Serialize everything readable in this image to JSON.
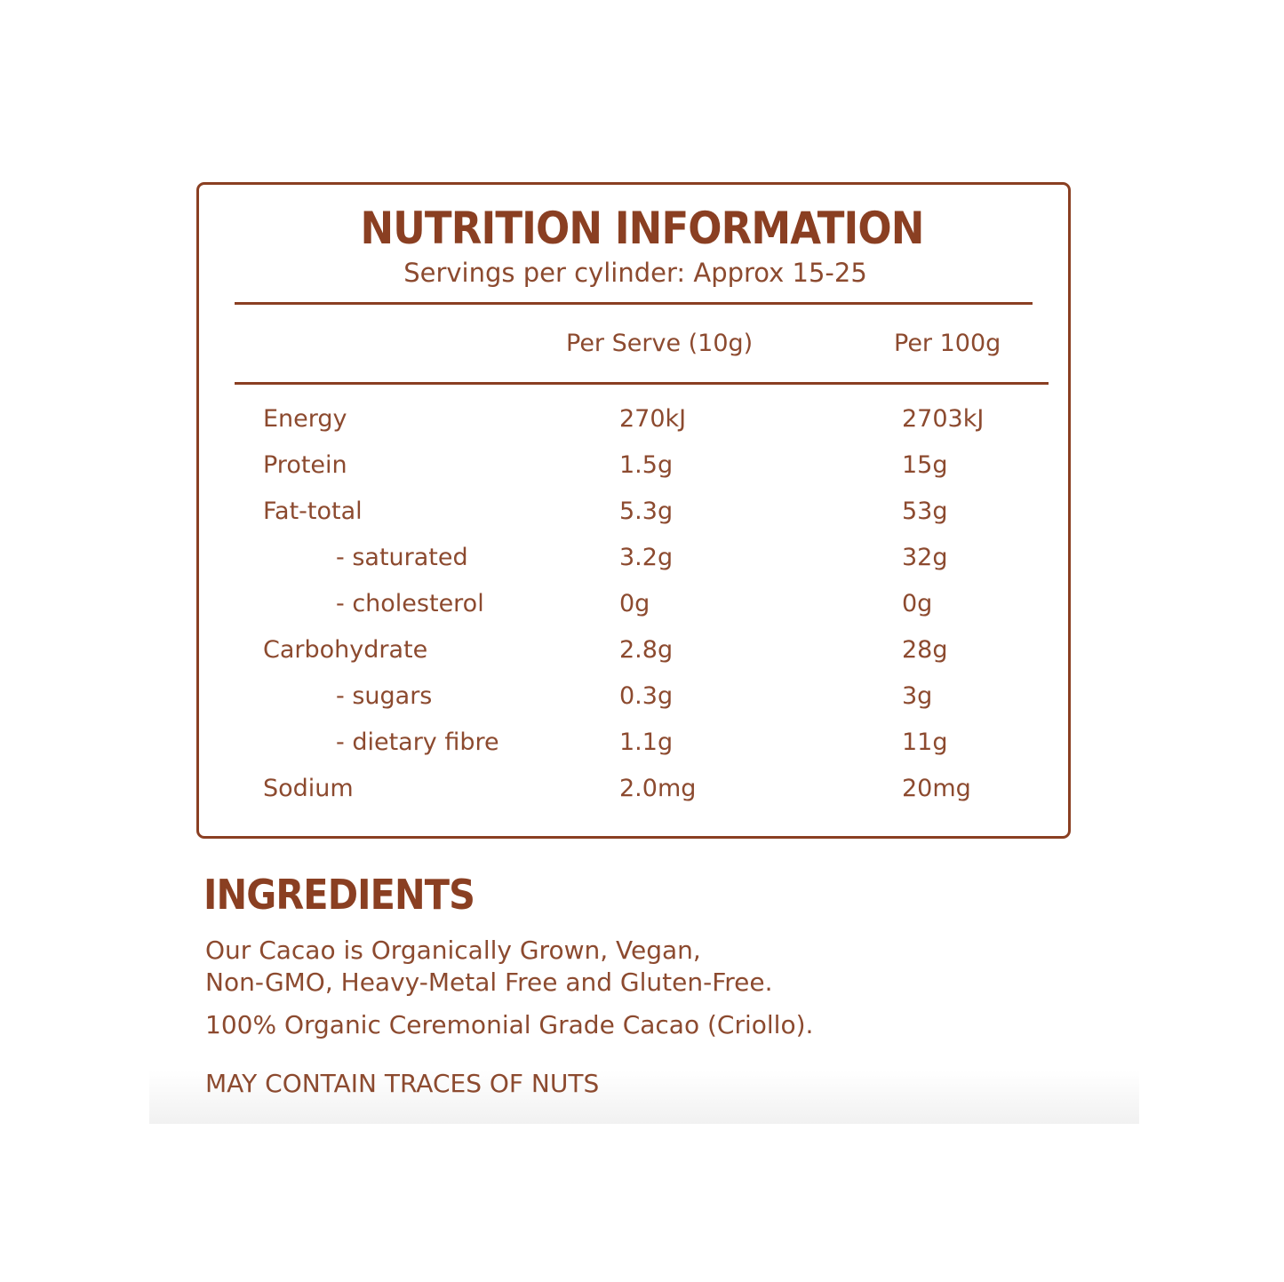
{
  "colors": {
    "brand": "#8a3f22",
    "text": "#8c4a2f"
  },
  "nutrition": {
    "title": "NUTRITION INFORMATION",
    "servings": "Servings per cylinder:  Approx 15-25",
    "columns": [
      "Per Serve (10g)",
      "Per 100g"
    ],
    "rows": [
      {
        "label": "Energy",
        "serve": "270kJ",
        "per100": "2703kJ",
        "indent": false
      },
      {
        "label": "Protein",
        "serve": "1.5g",
        "per100": "15g",
        "indent": false
      },
      {
        "label": "Fat-total",
        "serve": "5.3g",
        "per100": "53g",
        "indent": false
      },
      {
        "label": "- saturated",
        "serve": "3.2g",
        "per100": "32g",
        "indent": true
      },
      {
        "label": "- cholesterol",
        "serve": "0g",
        "per100": "0g",
        "indent": true
      },
      {
        "label": "Carbohydrate",
        "serve": "2.8g",
        "per100": "28g",
        "indent": false
      },
      {
        "label": "- sugars",
        "serve": "0.3g",
        "per100": "3g",
        "indent": true
      },
      {
        "label": "- dietary fibre",
        "serve": "1.1g",
        "per100": "11g",
        "indent": true
      },
      {
        "label": "Sodium",
        "serve": "2.0mg",
        "per100": "20mg",
        "indent": false
      }
    ]
  },
  "ingredients": {
    "title": "INGREDIENTS",
    "line1": "Our Cacao is Organically Grown, Vegan,",
    "line2": "Non-GMO, Heavy-Metal Free and Gluten-Free.",
    "line3": "100% Organic Ceremonial Grade Cacao (Criollo).",
    "warning": "MAY CONTAIN TRACES OF NUTS"
  }
}
